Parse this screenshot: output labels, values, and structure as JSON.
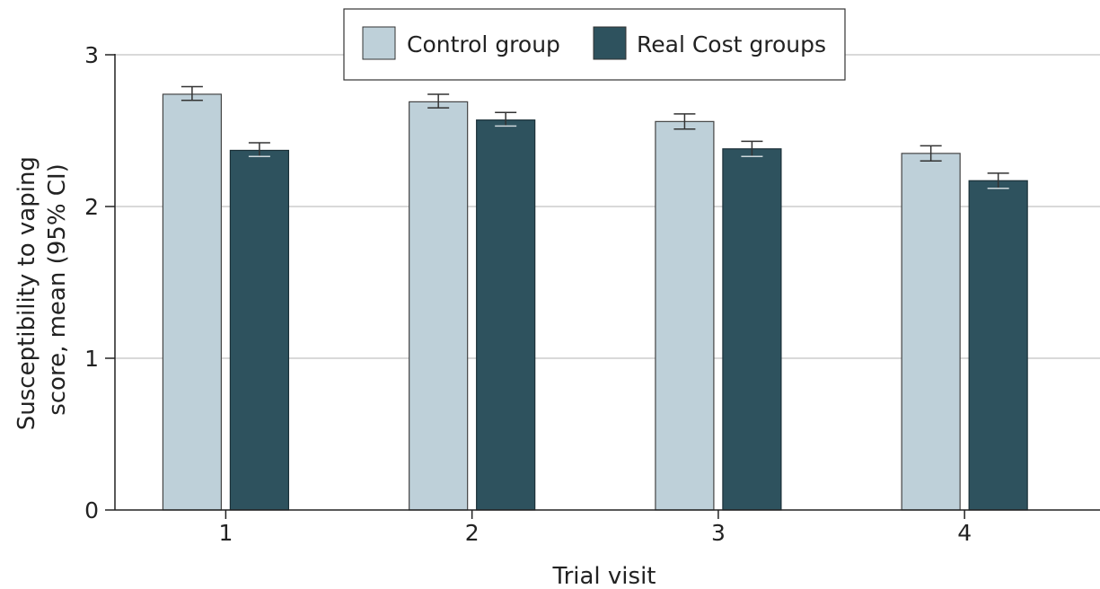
{
  "chart_data": {
    "type": "bar",
    "categories": [
      "1",
      "2",
      "3",
      "4"
    ],
    "series": [
      {
        "name": "Control group",
        "values": [
          2.74,
          2.69,
          2.56,
          2.35
        ],
        "ci_lower": [
          2.7,
          2.65,
          2.51,
          2.3
        ],
        "ci_upper": [
          2.79,
          2.74,
          2.61,
          2.4
        ],
        "color": "#bed0d9"
      },
      {
        "name": "Real Cost groups",
        "values": [
          2.37,
          2.57,
          2.38,
          2.17
        ],
        "ci_lower": [
          2.33,
          2.53,
          2.33,
          2.12
        ],
        "ci_upper": [
          2.42,
          2.62,
          2.43,
          2.22
        ],
        "color": "#2e525e"
      }
    ],
    "xlabel": "Trial visit",
    "ylabel": "Susceptibility to vaping score, mean (95% CI)",
    "ylim": [
      0,
      3
    ],
    "yticks": [
      "0",
      "1",
      "2",
      "3"
    ],
    "grid": true,
    "legend_position": "top-center"
  }
}
